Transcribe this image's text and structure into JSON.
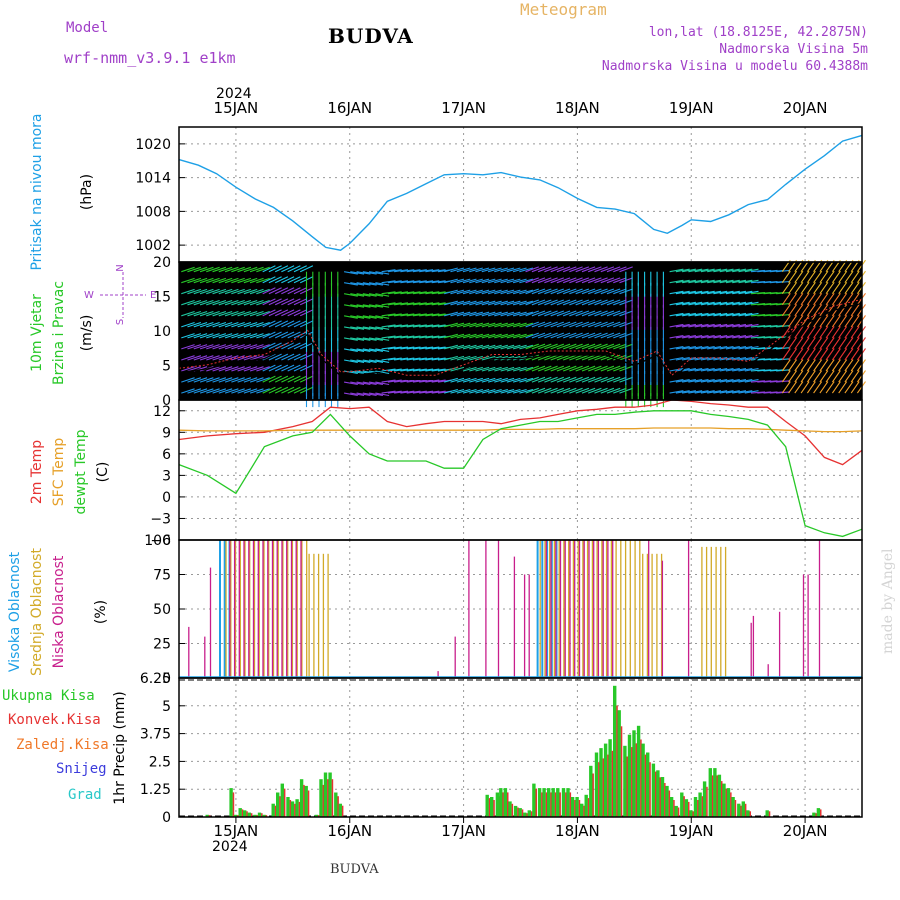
{
  "header": {
    "model_label": "Model",
    "model_value": "wrf-nmm_v3.9.1 e1km",
    "title": "BUDVA",
    "meteogram_label": "Meteogram",
    "lonlat": "lon,lat (18.8125E, 42.2875N)",
    "elevation": "Nadmorska Visina 5m",
    "model_elevation": "Nadmorska Visina u modelu 60.4388m",
    "year_top": "2024",
    "year_bottom": "2024",
    "footer_station": "BUDVA",
    "credit": "made by Angel"
  },
  "colors": {
    "pressure": "#1ea0e6",
    "temp2m": "#e63232",
    "sfc_temp": "#e6a028",
    "dewpt": "#28c828",
    "high_cloud": "#1ea0e6",
    "mid_cloud": "#d2aa28",
    "low_cloud": "#c81e8c",
    "total_precip": "#28c828",
    "conv_precip": "#e63232",
    "frozen": "#f07828",
    "snow": "#3c3cdc",
    "graupel": "#28c8c8",
    "wind_label": "#28c828"
  },
  "time_axis": {
    "day_labels": [
      "15JAN",
      "16JAN",
      "17JAN",
      "18JAN",
      "19JAN",
      "20JAN"
    ],
    "start_day": 14.5,
    "end_day": 20.5
  },
  "panels": {
    "pressure": {
      "label": "Pritisak na nivou mora",
      "unit": "(hPa)",
      "ticks": [
        "1002",
        "1008",
        "1014",
        "1020"
      ]
    },
    "wind": {
      "label1": "10m Vjetar",
      "label2": "Brzina i Pravac",
      "unit": "(m/s)",
      "ticks": [
        "0",
        "5",
        "10",
        "15",
        "20"
      ],
      "compass_n": "N",
      "compass_s": "S",
      "compass_w": "W",
      "compass_e": "E"
    },
    "temp": {
      "label_2m": "2m Temp",
      "label_sfc": "SFC Temp",
      "label_dew": "dewpt Temp",
      "unit": "(C)",
      "ticks": [
        "−6",
        "−3",
        "0",
        "3",
        "6",
        "9",
        "12"
      ]
    },
    "cloud": {
      "label_high": "Visoka Oblacnost",
      "label_mid": "Srednja Oblacnost",
      "label_low": "Niska Oblacnost",
      "unit": "(%)",
      "ticks": [
        "0",
        "25",
        "50",
        "75",
        "100"
      ]
    },
    "precip": {
      "label_total": "Ukupna Kisa",
      "label_conv": "Konvek.Kisa",
      "label_frozen": "Zaledj.Kisa",
      "label_snow": "Snijeg",
      "label_graupel": "Grad",
      "unit": "1hr Precip (mm)",
      "ticks": [
        "0",
        "1.25",
        "2.5",
        "3.75",
        "5",
        "6.25"
      ]
    }
  },
  "chart_data": [
    {
      "type": "line",
      "name": "pressure",
      "ylabel": "Pritisak na nivou mora (hPa)",
      "ylim": [
        999,
        1023
      ],
      "x": [
        14.5,
        14.67,
        14.83,
        15.0,
        15.17,
        15.33,
        15.5,
        15.67,
        15.79,
        15.92,
        16.0,
        16.17,
        16.33,
        16.5,
        16.67,
        16.83,
        17.0,
        17.17,
        17.33,
        17.5,
        17.67,
        17.83,
        18.0,
        18.17,
        18.33,
        18.5,
        18.67,
        18.79,
        18.92,
        19.0,
        19.17,
        19.33,
        19.5,
        19.67,
        19.83,
        20.0,
        20.17,
        20.33,
        20.5
      ],
      "y": [
        1017.2,
        1016.2,
        1014.7,
        1012.3,
        1010.2,
        1008.7,
        1006.3,
        1003.5,
        1001.6,
        1001.1,
        1002.3,
        1005.8,
        1009.8,
        1011.2,
        1012.9,
        1014.5,
        1014.7,
        1014.5,
        1014.9,
        1014.1,
        1013.6,
        1012.2,
        1010.3,
        1008.7,
        1008.4,
        1007.6,
        1004.8,
        1004.1,
        1005.5,
        1006.5,
        1006.2,
        1007.4,
        1009.2,
        1010.1,
        1012.8,
        1015.5,
        1017.9,
        1020.5,
        1021.5
      ]
    },
    {
      "type": "line",
      "name": "wind_speed",
      "ylabel": "(m/s)",
      "ylim": [
        0,
        20
      ],
      "x": [
        14.5,
        14.75,
        15.0,
        15.25,
        15.5,
        15.63,
        15.75,
        15.92,
        16.0,
        16.25,
        16.5,
        16.75,
        17.0,
        17.25,
        17.5,
        17.75,
        18.0,
        18.25,
        18.5,
        18.7,
        18.83,
        19.0,
        19.25,
        19.5,
        19.67,
        19.83,
        20.0,
        20.25,
        20.5
      ],
      "y": [
        4.0,
        4.5,
        5.5,
        6.0,
        8.0,
        9.5,
        6.0,
        3.5,
        3.5,
        4.0,
        3.0,
        3.0,
        4.5,
        6.0,
        6.0,
        6.5,
        6.5,
        6.5,
        5.0,
        6.5,
        3.0,
        5.5,
        5.5,
        5.0,
        7.0,
        9.0,
        11.0,
        13.0,
        14.0
      ]
    },
    {
      "type": "line",
      "name": "temperature",
      "ylabel": "(C)",
      "ylim": [
        -6,
        13.5
      ],
      "x": [
        14.5,
        14.75,
        15.0,
        15.25,
        15.5,
        15.67,
        15.83,
        16.0,
        16.17,
        16.33,
        16.5,
        16.67,
        16.83,
        17.0,
        17.17,
        17.33,
        17.5,
        17.67,
        17.83,
        18.0,
        18.17,
        18.33,
        18.5,
        18.67,
        18.83,
        19.0,
        19.17,
        19.33,
        19.5,
        19.67,
        19.83,
        20.0,
        20.17,
        20.33,
        20.5
      ],
      "series": [
        {
          "name": "2m Temp",
          "values": [
            8.0,
            8.5,
            8.8,
            9.0,
            9.8,
            10.5,
            12.5,
            12.3,
            12.5,
            10.5,
            9.8,
            10.2,
            10.5,
            10.5,
            10.5,
            10.2,
            10.8,
            11.0,
            11.5,
            12.0,
            12.2,
            12.5,
            12.5,
            12.8,
            13.5,
            13.3,
            13.0,
            12.8,
            12.5,
            12.5,
            10.5,
            8.5,
            5.5,
            4.5,
            6.5
          ]
        },
        {
          "name": "SFC Temp",
          "values": [
            9.3,
            9.2,
            9.2,
            9.2,
            9.3,
            9.3,
            9.3,
            9.3,
            9.3,
            9.3,
            9.3,
            9.3,
            9.3,
            9.3,
            9.3,
            9.4,
            9.4,
            9.4,
            9.5,
            9.5,
            9.5,
            9.5,
            9.5,
            9.6,
            9.6,
            9.6,
            9.6,
            9.5,
            9.5,
            9.4,
            9.3,
            9.2,
            9.1,
            9.1,
            9.2
          ]
        },
        {
          "name": "dewpt Temp",
          "values": [
            4.5,
            3.0,
            0.5,
            7.0,
            8.5,
            9.0,
            11.5,
            8.5,
            6.0,
            5.0,
            5.0,
            5.0,
            4.0,
            4.0,
            8.0,
            9.5,
            10.0,
            10.5,
            10.5,
            11.0,
            11.5,
            11.5,
            11.8,
            12.0,
            12.0,
            12.0,
            11.5,
            11.2,
            10.8,
            10.0,
            7.0,
            -4.0,
            -5.0,
            -5.5,
            -4.5
          ]
        }
      ]
    },
    {
      "type": "bar",
      "name": "cloud_cover",
      "ylabel": "(%)",
      "ylim": [
        0,
        100
      ],
      "segments": [
        {
          "series": "high",
          "from": 14.86,
          "to": 14.96,
          "value": 100
        },
        {
          "series": "high",
          "from": 17.65,
          "to": 17.85,
          "value": 100
        },
        {
          "series": "mid",
          "from": 14.9,
          "to": 15.63,
          "value": 100
        },
        {
          "series": "mid",
          "from": 15.63,
          "to": 15.83,
          "value": 90
        },
        {
          "series": "mid",
          "from": 17.66,
          "to": 18.56,
          "value": 100
        },
        {
          "series": "mid",
          "from": 18.56,
          "to": 18.76,
          "value": 90
        },
        {
          "series": "mid",
          "from": 19.08,
          "to": 19.3,
          "value": 95
        },
        {
          "series": "low",
          "from": 14.92,
          "to": 15.55,
          "value": 100
        },
        {
          "series": "low",
          "from": 17.7,
          "to": 18.3,
          "value": 100
        }
      ],
      "low_singles": [
        {
          "x": 14.56,
          "value": 37
        },
        {
          "x": 14.7,
          "value": 30
        },
        {
          "x": 14.75,
          "value": 80
        },
        {
          "x": 16.75,
          "value": 5
        },
        {
          "x": 16.9,
          "value": 30
        },
        {
          "x": 17.02,
          "value": 100
        },
        {
          "x": 17.17,
          "value": 100
        },
        {
          "x": 17.28,
          "value": 100
        },
        {
          "x": 17.42,
          "value": 88
        },
        {
          "x": 17.51,
          "value": 75
        },
        {
          "x": 17.55,
          "value": 75
        },
        {
          "x": 18.6,
          "value": 100
        },
        {
          "x": 18.72,
          "value": 85
        },
        {
          "x": 18.95,
          "value": 100
        },
        {
          "x": 19.5,
          "value": 40
        },
        {
          "x": 19.52,
          "value": 45
        },
        {
          "x": 19.65,
          "value": 10
        },
        {
          "x": 19.75,
          "value": 48
        },
        {
          "x": 19.96,
          "value": 75
        },
        {
          "x": 20.0,
          "value": 75
        },
        {
          "x": 20.1,
          "value": 100
        }
      ]
    },
    {
      "type": "bar",
      "name": "precipitation",
      "ylabel": "1hr Precip (mm)",
      "ylim": [
        0,
        6.25
      ],
      "x": [
        14.75,
        14.96,
        15.0,
        15.04,
        15.08,
        15.12,
        15.17,
        15.21,
        15.25,
        15.33,
        15.37,
        15.41,
        15.46,
        15.5,
        15.54,
        15.58,
        15.62,
        15.71,
        15.75,
        15.79,
        15.83,
        15.88,
        15.92,
        17.21,
        17.25,
        17.3,
        17.33,
        17.37,
        17.41,
        17.46,
        17.5,
        17.54,
        17.58,
        17.62,
        17.67,
        17.71,
        17.75,
        17.79,
        17.83,
        17.88,
        17.92,
        17.96,
        18.0,
        18.04,
        18.08,
        18.12,
        18.17,
        18.21,
        18.25,
        18.29,
        18.33,
        18.37,
        18.42,
        18.46,
        18.5,
        18.54,
        18.58,
        18.62,
        18.67,
        18.71,
        18.75,
        18.79,
        18.83,
        18.87,
        18.92,
        18.96,
        19.0,
        19.04,
        19.08,
        19.12,
        19.17,
        19.21,
        19.25,
        19.29,
        19.33,
        19.37,
        19.42,
        19.46,
        19.5,
        19.67,
        20.08,
        20.12
      ],
      "values": [
        0.1,
        1.3,
        0.1,
        0.4,
        0.3,
        0.2,
        0.1,
        0.2,
        0.1,
        0.6,
        1.1,
        1.5,
        0.9,
        0.7,
        0.8,
        1.7,
        1.4,
        0.1,
        1.7,
        2.0,
        2.0,
        1.1,
        0.6,
        1.0,
        0.9,
        1.1,
        1.3,
        1.3,
        0.7,
        0.5,
        0.4,
        0.2,
        0.3,
        1.5,
        1.3,
        1.3,
        1.3,
        1.3,
        1.3,
        1.3,
        1.3,
        0.9,
        0.9,
        0.6,
        1.0,
        2.3,
        2.9,
        3.1,
        3.3,
        3.5,
        5.9,
        4.8,
        3.2,
        3.7,
        3.9,
        4.1,
        3.3,
        2.9,
        2.4,
        2.1,
        1.8,
        1.4,
        0.9,
        0.5,
        1.1,
        0.8,
        0.3,
        0.9,
        1.1,
        1.6,
        2.2,
        2.2,
        1.9,
        1.5,
        1.3,
        0.9,
        0.6,
        0.7,
        0.3,
        0.3,
        0.2,
        0.4
      ]
    }
  ]
}
